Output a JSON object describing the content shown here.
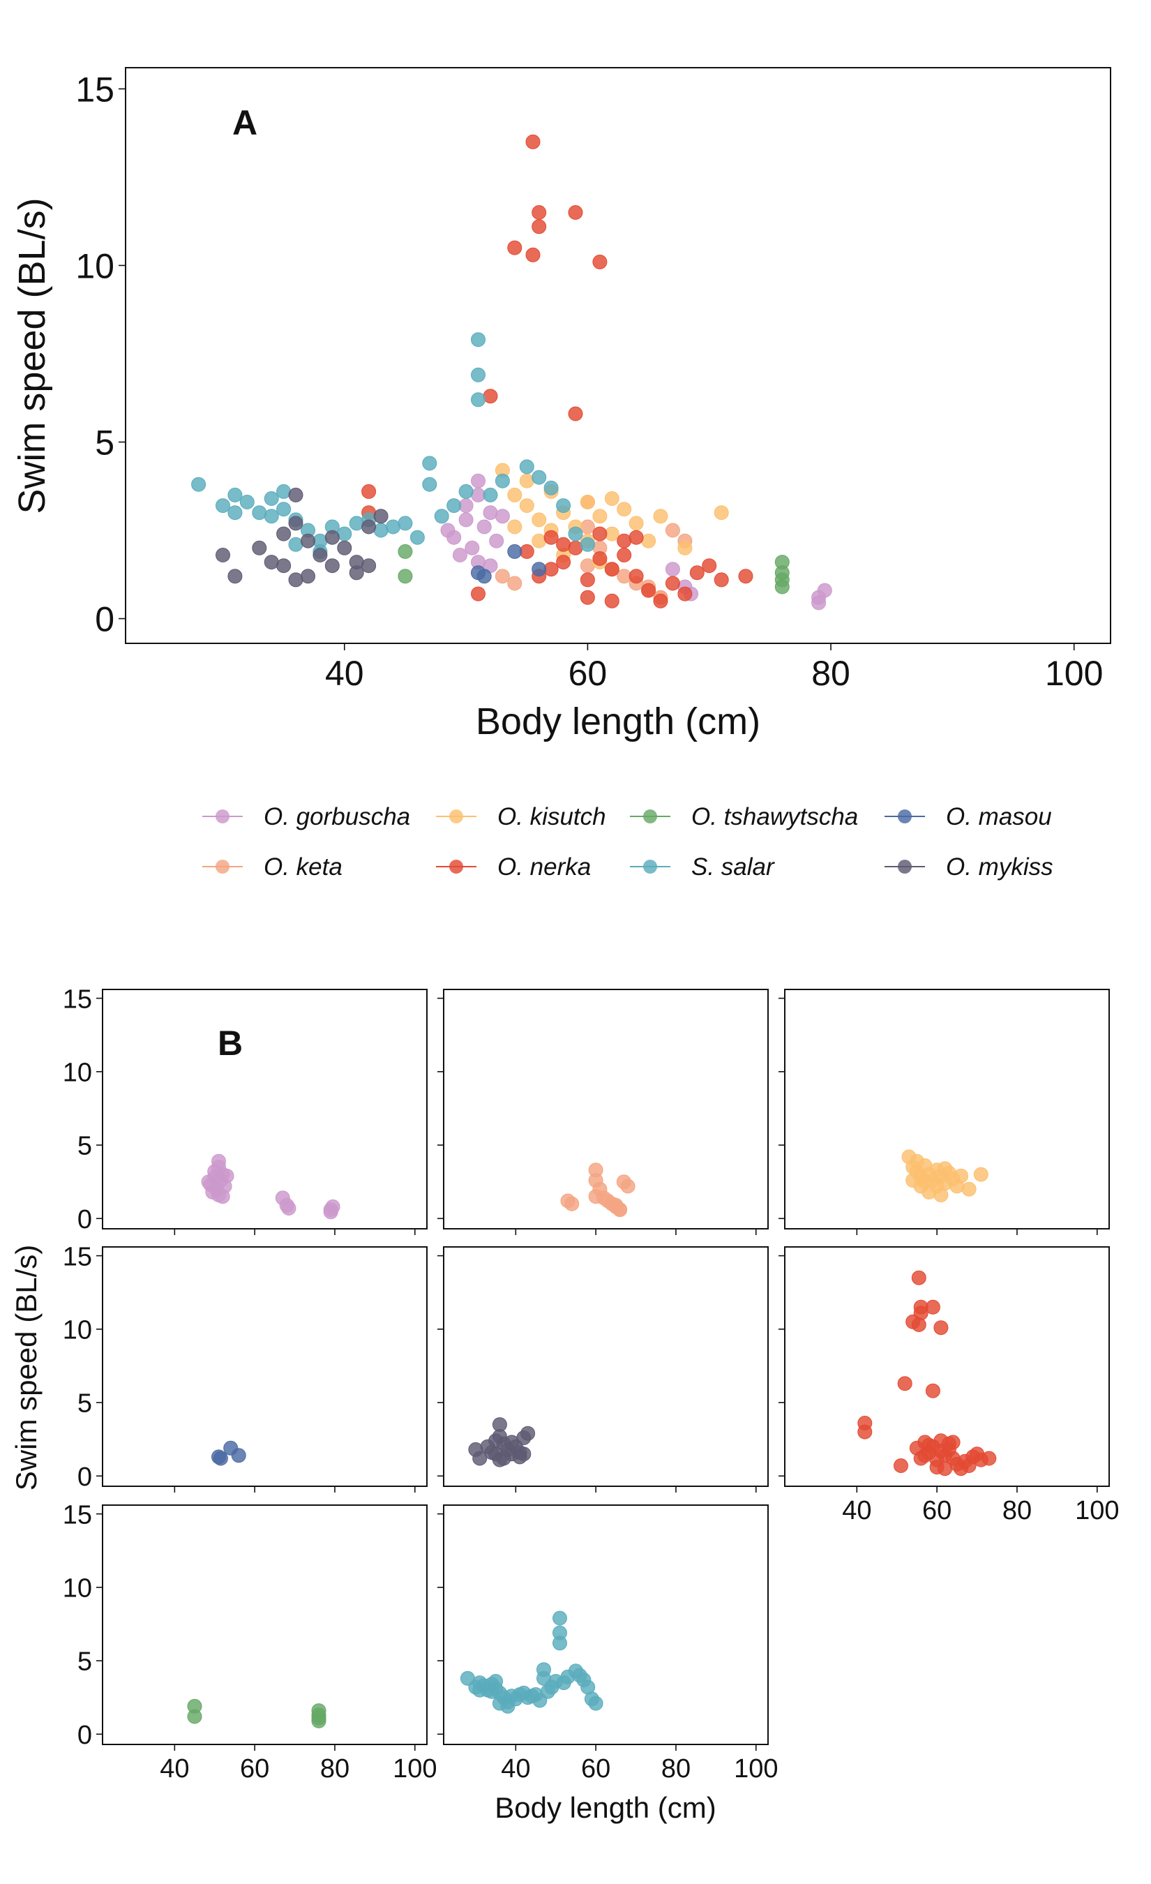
{
  "chart_data": [
    {
      "type": "scatter",
      "panel_label": "A",
      "xlabel": "Body length (cm)",
      "ylabel": "Swim speed (BL/s)",
      "xlim": [
        22,
        103
      ],
      "ylim": [
        -0.7,
        15.6
      ],
      "xticks": [
        40,
        60,
        80,
        100
      ],
      "yticks": [
        0,
        5,
        10,
        15
      ],
      "grid": false,
      "series": [
        {
          "name": "O. gorbuscha",
          "color": "#cc99cc",
          "points": [
            [
              49,
              2.3
            ],
            [
              50,
              2.8
            ],
            [
              51,
              3.5
            ],
            [
              52,
              3.0
            ],
            [
              50.5,
              2.0
            ],
            [
              51.5,
              2.6
            ],
            [
              49.5,
              1.8
            ],
            [
              52.5,
              2.2
            ],
            [
              50,
              3.2
            ],
            [
              51,
              1.6
            ],
            [
              48.5,
              2.5
            ],
            [
              53,
              2.9
            ],
            [
              52,
              1.5
            ],
            [
              51,
              3.9
            ],
            [
              67,
              1.4
            ],
            [
              68,
              0.9
            ],
            [
              68.5,
              0.7
            ],
            [
              79,
              0.6
            ],
            [
              79.5,
              0.8
            ],
            [
              79,
              0.45
            ]
          ]
        },
        {
          "name": "O. keta",
          "color": "#f4a582",
          "points": [
            [
              53,
              1.2
            ],
            [
              54,
              1.0
            ],
            [
              60,
              3.3
            ],
            [
              60,
              2.6
            ],
            [
              61,
              2.0
            ],
            [
              60,
              1.5
            ],
            [
              62,
              1.4
            ],
            [
              63,
              1.2
            ],
            [
              64,
              1.0
            ],
            [
              65,
              0.8
            ],
            [
              66,
              0.6
            ],
            [
              67,
              2.5
            ],
            [
              68,
              2.2
            ],
            [
              66,
              0.6
            ],
            [
              65,
              0.9
            ]
          ]
        },
        {
          "name": "O. kisutch",
          "color": "#fdbf6f",
          "points": [
            [
              53,
              4.2
            ],
            [
              54,
              3.5
            ],
            [
              55,
              3.2
            ],
            [
              56,
              2.8
            ],
            [
              57,
              3.6
            ],
            [
              58,
              3.0
            ],
            [
              59,
              2.6
            ],
            [
              60,
              3.3
            ],
            [
              61,
              2.9
            ],
            [
              62,
              2.4
            ],
            [
              63,
              3.1
            ],
            [
              64,
              2.7
            ],
            [
              65,
              2.2
            ],
            [
              66,
              2.9
            ],
            [
              68,
              2.0
            ],
            [
              71,
              3.0
            ],
            [
              56,
              2.2
            ],
            [
              58,
              1.8
            ],
            [
              61,
              1.6
            ],
            [
              55,
              3.9
            ],
            [
              57,
              2.5
            ],
            [
              60,
              2.2
            ],
            [
              62,
              3.4
            ],
            [
              54,
              2.6
            ]
          ]
        },
        {
          "name": "O. nerka",
          "color": "#e34a33",
          "points": [
            [
              42,
              3.6
            ],
            [
              42,
              3.0
            ],
            [
              51,
              0.7
            ],
            [
              52,
              6.3
            ],
            [
              54,
              10.5
            ],
            [
              55.5,
              13.5
            ],
            [
              55.5,
              10.3
            ],
            [
              56,
              11.5
            ],
            [
              56,
              11.1
            ],
            [
              59,
              11.5
            ],
            [
              61,
              10.1
            ],
            [
              59,
              5.8
            ],
            [
              55,
              1.9
            ],
            [
              56,
              1.2
            ],
            [
              57,
              2.3
            ],
            [
              58,
              1.6
            ],
            [
              59,
              2.0
            ],
            [
              60,
              1.1
            ],
            [
              61,
              2.4
            ],
            [
              62,
              1.4
            ],
            [
              63,
              1.8
            ],
            [
              64,
              1.2
            ],
            [
              65,
              0.8
            ],
            [
              66,
              0.5
            ],
            [
              67,
              1.0
            ],
            [
              68,
              0.7
            ],
            [
              69,
              1.3
            ],
            [
              70,
              1.5
            ],
            [
              71,
              1.1
            ],
            [
              73,
              1.2
            ],
            [
              60,
              0.6
            ],
            [
              62,
              0.5
            ],
            [
              57,
              1.4
            ],
            [
              61,
              1.7
            ],
            [
              63,
              2.2
            ],
            [
              64,
              2.3
            ],
            [
              58,
              2.1
            ]
          ]
        },
        {
          "name": "O. tshawytscha",
          "color": "#66a866",
          "points": [
            [
              45,
              1.9
            ],
            [
              45,
              1.2
            ],
            [
              76,
              1.6
            ],
            [
              76,
              1.3
            ],
            [
              76,
              1.1
            ],
            [
              76,
              0.9
            ]
          ]
        },
        {
          "name": "S. salar",
          "color": "#5aacbd",
          "points": [
            [
              28,
              3.8
            ],
            [
              30,
              3.2
            ],
            [
              31,
              3.5
            ],
            [
              32,
              3.3
            ],
            [
              33,
              3.0
            ],
            [
              34,
              3.4
            ],
            [
              35,
              3.1
            ],
            [
              36,
              2.8
            ],
            [
              37,
              2.5
            ],
            [
              38,
              2.2
            ],
            [
              39,
              2.6
            ],
            [
              40,
              2.4
            ],
            [
              41,
              2.7
            ],
            [
              42,
              2.8
            ],
            [
              43,
              2.5
            ],
            [
              44,
              2.6
            ],
            [
              45,
              2.7
            ],
            [
              46,
              2.3
            ],
            [
              47,
              4.4
            ],
            [
              47,
              3.8
            ],
            [
              48,
              2.9
            ],
            [
              49,
              3.2
            ],
            [
              50,
              3.6
            ],
            [
              51,
              7.9
            ],
            [
              51,
              6.9
            ],
            [
              51,
              6.2
            ],
            [
              52,
              3.5
            ],
            [
              53,
              3.9
            ],
            [
              55,
              4.3
            ],
            [
              56,
              4.0
            ],
            [
              57,
              3.7
            ],
            [
              58,
              3.2
            ],
            [
              59,
              2.4
            ],
            [
              60,
              2.1
            ],
            [
              34,
              2.9
            ],
            [
              36,
              2.1
            ],
            [
              38,
              1.9
            ],
            [
              31,
              3.0
            ],
            [
              35,
              3.6
            ]
          ]
        },
        {
          "name": "O. masou",
          "color": "#4a6aa3",
          "points": [
            [
              51,
              1.3
            ],
            [
              51.5,
              1.2
            ],
            [
              54,
              1.9
            ],
            [
              56,
              1.4
            ]
          ]
        },
        {
          "name": "O. mykiss",
          "color": "#5e5a73",
          "points": [
            [
              30,
              1.8
            ],
            [
              31,
              1.2
            ],
            [
              33,
              2.0
            ],
            [
              34,
              1.6
            ],
            [
              35,
              2.4
            ],
            [
              35,
              1.5
            ],
            [
              36,
              3.5
            ],
            [
              36,
              1.1
            ],
            [
              37,
              2.2
            ],
            [
              38,
              1.8
            ],
            [
              39,
              1.5
            ],
            [
              40,
              2.0
            ],
            [
              41,
              1.6
            ],
            [
              42,
              2.6
            ],
            [
              43,
              2.9
            ],
            [
              42,
              1.5
            ],
            [
              37,
              1.2
            ],
            [
              36,
              2.7
            ],
            [
              39,
              2.3
            ],
            [
              41,
              1.3
            ]
          ]
        }
      ]
    },
    {
      "type": "scatter",
      "panel_label": "B",
      "xlabel": "Body length (cm)",
      "ylabel": "Swim speed (BL/s)",
      "xlim": [
        22,
        103
      ],
      "ylim": [
        -0.7,
        15.6
      ],
      "xticks": [
        40,
        60,
        80,
        100
      ],
      "yticks": [
        0,
        5,
        10,
        15
      ],
      "facets": [
        {
          "series": "O. gorbuscha",
          "row": 0,
          "col": 0
        },
        {
          "series": "O. keta",
          "row": 0,
          "col": 1
        },
        {
          "series": "O. kisutch",
          "row": 0,
          "col": 2
        },
        {
          "series": "O. masou",
          "row": 1,
          "col": 0
        },
        {
          "series": "O. mykiss",
          "row": 1,
          "col": 1
        },
        {
          "series": "O. nerka",
          "row": 1,
          "col": 2
        },
        {
          "series": "O. tshawytscha",
          "row": 2,
          "col": 0
        },
        {
          "series": "S. salar",
          "row": 2,
          "col": 1
        }
      ]
    }
  ],
  "legend": {
    "placement": "between panels",
    "items": [
      {
        "label": "O. gorbuscha",
        "color": "#cc99cc"
      },
      {
        "label": "O. kisutch",
        "color": "#fdbf6f"
      },
      {
        "label": "O. tshawytscha",
        "color": "#66a866"
      },
      {
        "label": "O. masou",
        "color": "#4a6aa3"
      },
      {
        "label": "O. keta",
        "color": "#f4a582"
      },
      {
        "label": "O. nerka",
        "color": "#e34a33"
      },
      {
        "label": "S. salar",
        "color": "#5aacbd"
      },
      {
        "label": "O. mykiss",
        "color": "#5e5a73"
      }
    ]
  }
}
